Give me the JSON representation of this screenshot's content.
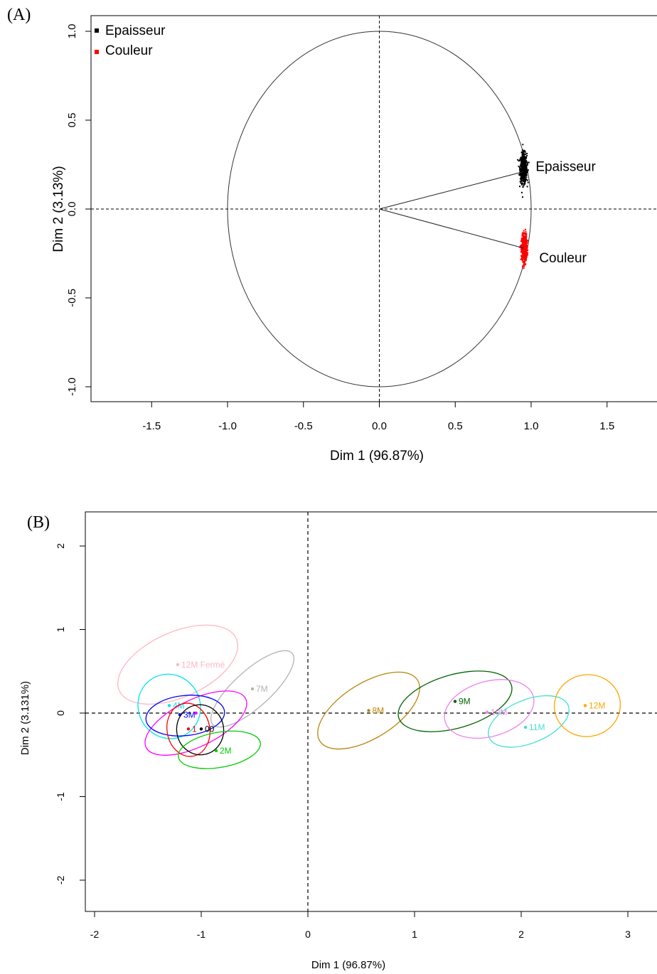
{
  "chart_data": [
    {
      "panel_label": "(A)",
      "type": "scatter",
      "subtype": "variables-factor-map",
      "xlabel": "Dim 1 (96.87%)",
      "ylabel": "Dim 2 (3.13%)",
      "xlim": [
        -1.95,
        1.95
      ],
      "ylim": [
        -1.1,
        1.1
      ],
      "xticks": [
        "-1.5",
        "-1.0",
        "-0.5",
        "0.0",
        "0.5",
        "1.0",
        "1.5"
      ],
      "xtick_values": [
        -1.5,
        -1.0,
        -0.5,
        0.0,
        0.5,
        1.0,
        1.5
      ],
      "yticks": [
        "-1.0",
        "-0.5",
        "0.0",
        "0.5",
        "1.0"
      ],
      "ytick_values": [
        -1.0,
        -0.5,
        0.0,
        0.5,
        1.0
      ],
      "unit_circle": true,
      "reference_lines": "dashed at x=0 and y=0",
      "legend": {
        "placement": "top-left",
        "items": [
          {
            "name": "Epaisseur",
            "color": "#000000"
          },
          {
            "name": "Couleur",
            "color": "#ff0000"
          }
        ]
      },
      "series": [
        {
          "name": "Epaisseur",
          "color": "#000000",
          "arrow": [
            0.95,
            0.21
          ],
          "cloud_center": [
            0.95,
            0.23
          ],
          "cloud_spread": [
            0.02,
            0.09
          ]
        },
        {
          "name": "Couleur",
          "color": "#ff0000",
          "arrow": [
            0.95,
            -0.22
          ],
          "cloud_center": [
            0.955,
            -0.22
          ],
          "cloud_spread": [
            0.015,
            0.08
          ]
        }
      ]
    },
    {
      "panel_label": "(B)",
      "type": "scatter",
      "subtype": "individuals-factor-map-with-confidence-ellipses",
      "xlabel": "Dim 1 (96.87%)",
      "ylabel": "Dim 2 (3.131%)",
      "xlim": [
        -2.1,
        3.3
      ],
      "ylim": [
        -2.2,
        2.6
      ],
      "xticks": [
        "-2",
        "-1",
        "0",
        "1",
        "2",
        "3"
      ],
      "xtick_values": [
        -2,
        -1,
        0,
        1,
        2,
        3
      ],
      "yticks": [
        "-2",
        "-1",
        "0",
        "1",
        "2"
      ],
      "ytick_values": [
        -2,
        -1,
        0,
        1,
        2
      ],
      "reference_lines": "dashed at x=0 and y=0",
      "groups": [
        {
          "name": "12M Fermé",
          "color": "#ffb6c1",
          "x": -1.22,
          "y": 0.58,
          "ellipse": {
            "cx": -1.22,
            "cy": 0.58,
            "rx": 0.6,
            "ry": 0.39,
            "angle": -24
          }
        },
        {
          "name": "7M",
          "color": "#b3b3b3",
          "x": -0.52,
          "y": 0.29,
          "ellipse": {
            "cx": -0.52,
            "cy": 0.29,
            "rx": 0.5,
            "ry": 0.22,
            "angle": -42
          }
        },
        {
          "name": "4M",
          "color": "#00e5ee",
          "x": -1.3,
          "y": 0.09,
          "ellipse": {
            "cx": -1.3,
            "cy": 0.08,
            "rx": 0.29,
            "ry": 0.39,
            "angle": -28
          }
        },
        {
          "name": "",
          "color": "#ff00ff",
          "x": -1.05,
          "y": 0.0,
          "ellipse": {
            "cx": -1.05,
            "cy": -0.12,
            "rx": 0.52,
            "ry": 0.28,
            "angle": -26
          }
        },
        {
          "name": "3M",
          "color": "#0000ff",
          "x": -1.2,
          "y": -0.02,
          "ellipse": {
            "cx": -1.15,
            "cy": -0.03,
            "rx": 0.37,
            "ry": 0.24,
            "angle": -6
          }
        },
        {
          "name": "1",
          "color": "#ff0000",
          "x": -1.12,
          "y": -0.19,
          "ellipse": {
            "cx": -1.12,
            "cy": -0.2,
            "rx": 0.2,
            "ry": 0.32,
            "angle": -10
          }
        },
        {
          "name": "00",
          "color": "#000000",
          "x": -1.0,
          "y": -0.19,
          "ellipse": {
            "cx": -1.01,
            "cy": -0.2,
            "rx": 0.22,
            "ry": 0.3,
            "angle": -8
          }
        },
        {
          "name": "2M",
          "color": "#00cc00",
          "x": -0.86,
          "y": -0.45,
          "ellipse": {
            "cx": -0.83,
            "cy": -0.44,
            "rx": 0.39,
            "ry": 0.21,
            "angle": -10
          }
        },
        {
          "name": "8M",
          "color": "#b8860b",
          "x": 0.57,
          "y": 0.03,
          "ellipse": {
            "cx": 0.57,
            "cy": 0.03,
            "rx": 0.54,
            "ry": 0.33,
            "angle": -32
          }
        },
        {
          "name": "9M",
          "color": "#006400",
          "x": 1.38,
          "y": 0.14,
          "ellipse": {
            "cx": 1.38,
            "cy": 0.14,
            "rx": 0.55,
            "ry": 0.32,
            "angle": -16
          }
        },
        {
          "name": "10M",
          "color": "#ee82ee",
          "x": 1.68,
          "y": 0.01,
          "ellipse": {
            "cx": 1.7,
            "cy": 0.05,
            "rx": 0.43,
            "ry": 0.33,
            "angle": -16
          }
        },
        {
          "name": "11M",
          "color": "#40e0d0",
          "x": 2.04,
          "y": -0.17,
          "ellipse": {
            "cx": 2.07,
            "cy": -0.1,
            "rx": 0.4,
            "ry": 0.26,
            "angle": -22
          }
        },
        {
          "name": "12M",
          "color": "#ffa500",
          "x": 2.6,
          "y": 0.09,
          "ellipse": {
            "cx": 2.62,
            "cy": 0.09,
            "rx": 0.31,
            "ry": 0.37,
            "angle": -10
          }
        }
      ]
    }
  ]
}
